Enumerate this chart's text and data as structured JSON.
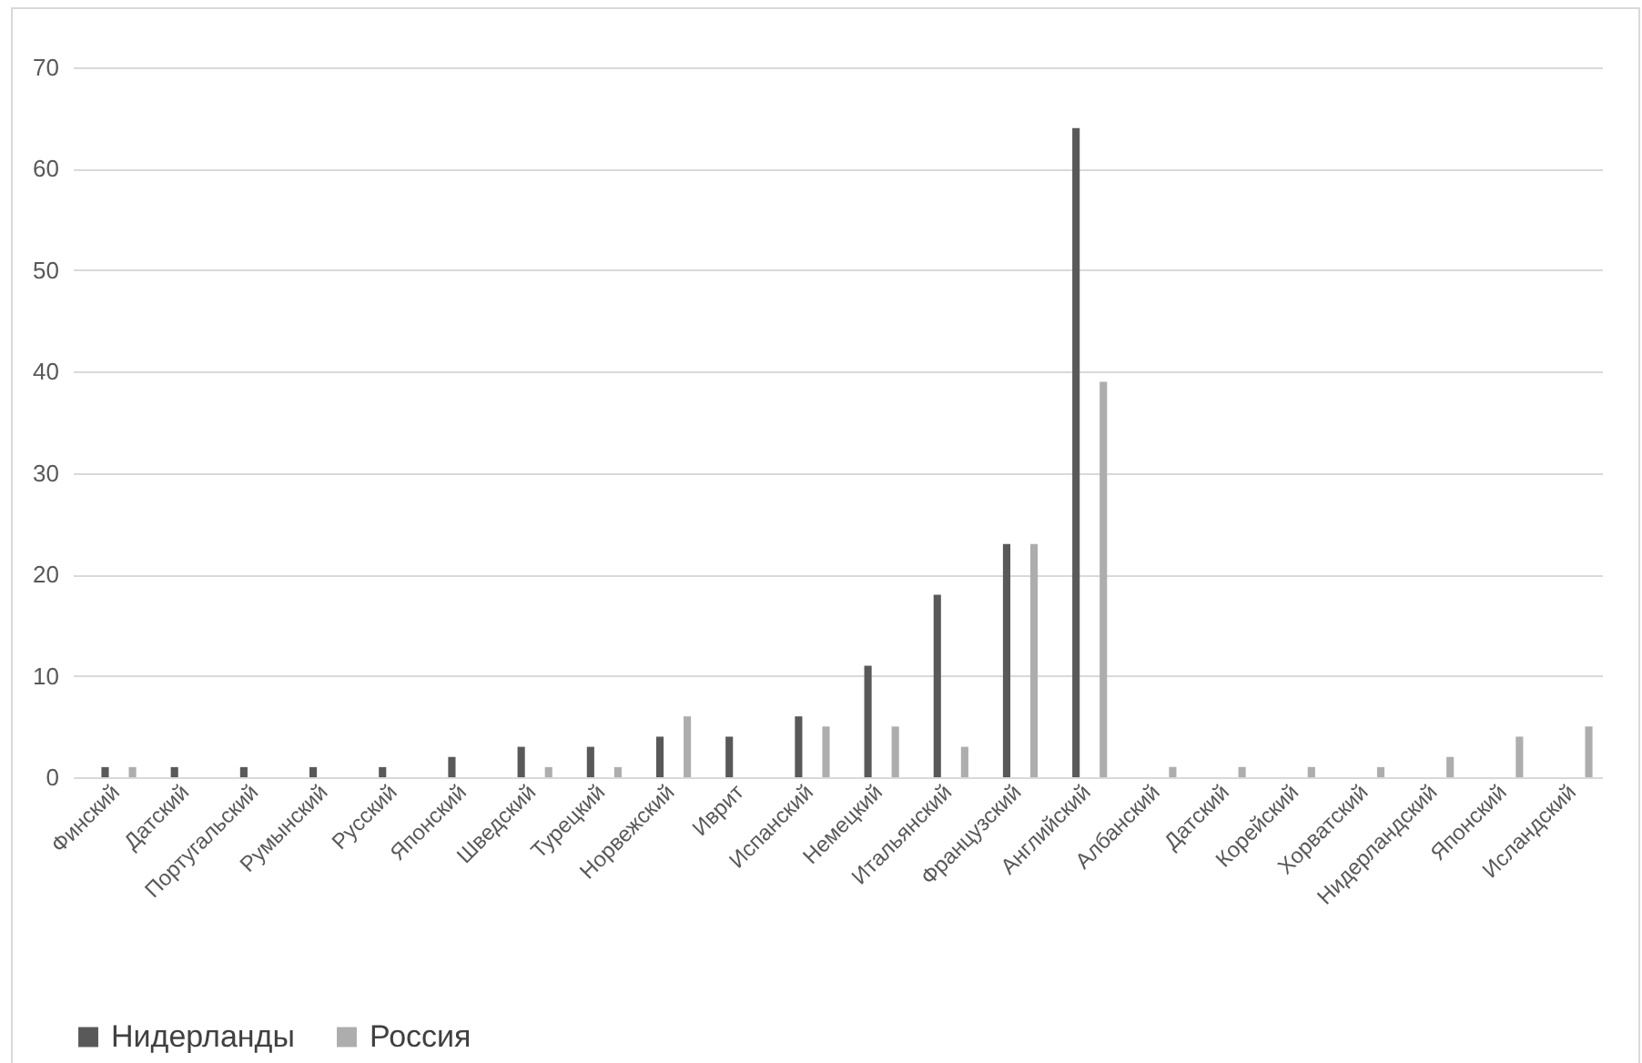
{
  "chart_data": {
    "type": "bar",
    "categories": [
      "Финский",
      "Датский",
      "Португальский",
      "Румынский",
      "Русский",
      "Японский",
      "Шведский",
      "Турецкий",
      "Норвежский",
      "Иврит",
      "Испанский",
      "Немецкий",
      "Итальянский",
      "Французский",
      "Английский",
      "Албанский",
      "Датский",
      "Корейский",
      "Хорватский",
      "Нидерландский",
      "Японский",
      "Исландский"
    ],
    "series": [
      {
        "name": "Нидерланды",
        "color": "#595959",
        "values": [
          1,
          1,
          1,
          1,
          1,
          2,
          3,
          3,
          4,
          4,
          6,
          11,
          18,
          23,
          64,
          null,
          null,
          null,
          null,
          null,
          null,
          null
        ]
      },
      {
        "name": "Россия",
        "color": "#adadad",
        "values": [
          1,
          null,
          null,
          null,
          null,
          null,
          1,
          1,
          6,
          null,
          5,
          5,
          3,
          23,
          39,
          1,
          1,
          1,
          1,
          2,
          4,
          5
        ]
      }
    ],
    "ylim": [
      0,
      70
    ],
    "yticks": [
      0,
      10,
      20,
      30,
      40,
      50,
      60,
      70
    ],
    "grid": "y",
    "legend": "bottom"
  }
}
